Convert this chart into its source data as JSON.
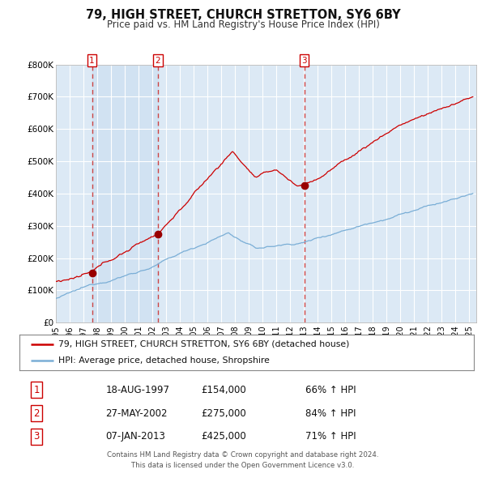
{
  "title": "79, HIGH STREET, CHURCH STRETTON, SY6 6BY",
  "subtitle": "Price paid vs. HM Land Registry's House Price Index (HPI)",
  "title_fontsize": 10.5,
  "subtitle_fontsize": 8.5,
  "background_color": "#ffffff",
  "plot_bg_color": "#dce9f5",
  "grid_color": "#ffffff",
  "red_line_color": "#cc0000",
  "blue_line_color": "#7aaed6",
  "sale_marker_color": "#990000",
  "vline_color": "#cc4444",
  "ylim": [
    0,
    800000
  ],
  "yticks": [
    0,
    100000,
    200000,
    300000,
    400000,
    500000,
    600000,
    700000,
    800000
  ],
  "ytick_labels": [
    "£0",
    "£100K",
    "£200K",
    "£300K",
    "£400K",
    "£500K",
    "£600K",
    "£700K",
    "£800K"
  ],
  "xlim_start": 1995.0,
  "xlim_end": 2025.5,
  "xtick_years": [
    1995,
    1996,
    1997,
    1998,
    1999,
    2000,
    2001,
    2002,
    2003,
    2004,
    2005,
    2006,
    2007,
    2008,
    2009,
    2010,
    2011,
    2012,
    2013,
    2014,
    2015,
    2016,
    2017,
    2018,
    2019,
    2020,
    2021,
    2022,
    2023,
    2024,
    2025
  ],
  "sale1_x": 1997.62,
  "sale1_y": 154000,
  "sale2_x": 2002.4,
  "sale2_y": 275000,
  "sale3_x": 2013.03,
  "sale3_y": 425000,
  "legend_label_red": "79, HIGH STREET, CHURCH STRETTON, SY6 6BY (detached house)",
  "legend_label_blue": "HPI: Average price, detached house, Shropshire",
  "table_data": [
    [
      "1",
      "18-AUG-1997",
      "£154,000",
      "66% ↑ HPI"
    ],
    [
      "2",
      "27-MAY-2002",
      "£275,000",
      "84% ↑ HPI"
    ],
    [
      "3",
      "07-JAN-2013",
      "£425,000",
      "71% ↑ HPI"
    ]
  ],
  "footer_line1": "Contains HM Land Registry data © Crown copyright and database right 2024.",
  "footer_line2": "This data is licensed under the Open Government Licence v3.0.",
  "box_border_color": "#cc0000",
  "shade_between_color": "#c8ddf0",
  "shade_alpha": 0.5
}
